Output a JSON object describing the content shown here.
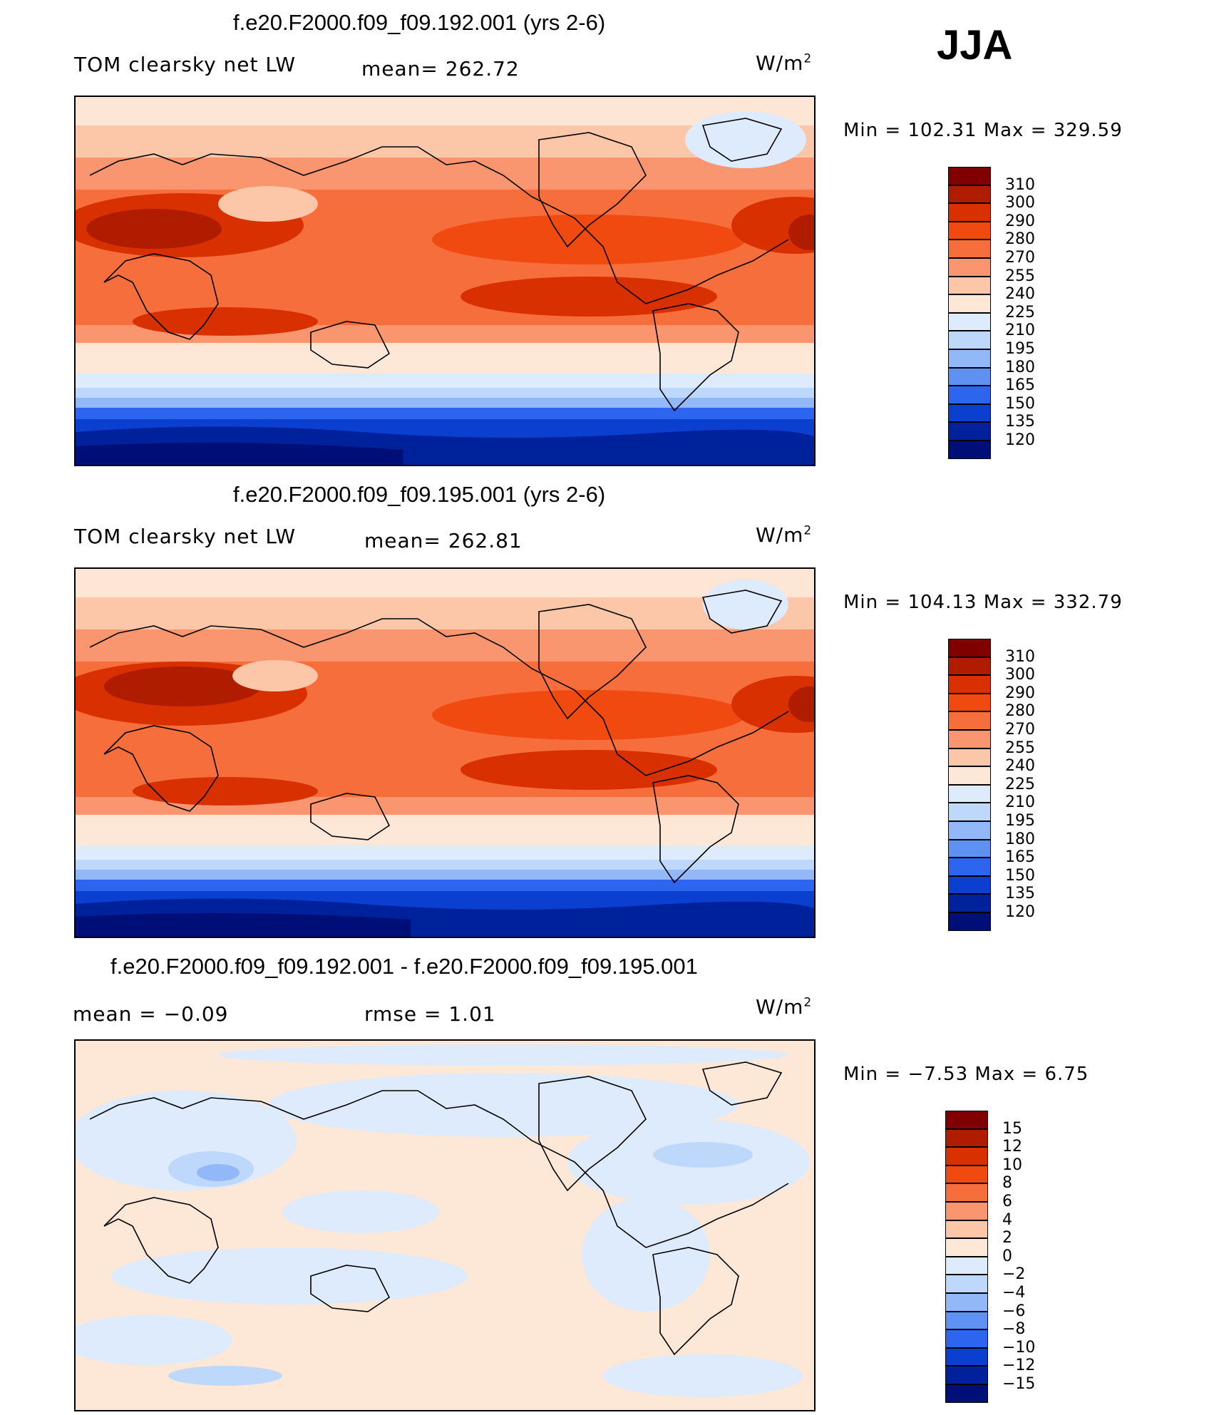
{
  "season": "JJA",
  "units_sym": "W/m",
  "units_sup": "2",
  "panels": [
    {
      "title": "f.e20.F2000.f09_f09.192.001 (yrs 2-6)",
      "left_label": "TOM clearsky net LW",
      "mid_label": "mean= 262.72",
      "minmax": "Min  =  102.31  Max  =  329.59"
    },
    {
      "title": "f.e20.F2000.f09_f09.195.001 (yrs 2-6)",
      "left_label": "TOM clearsky net LW",
      "mid_label": "mean= 262.81",
      "minmax": "Min  =  104.13  Max  =  332.79"
    },
    {
      "title": "f.e20.F2000.f09_f09.192.001 - f.e20.F2000.f09_f09.195.001",
      "left_label": "mean  =    −0.09",
      "mid_label": "rmse  =     1.01",
      "minmax": "Min  =    −7.53  Max  =     6.75"
    }
  ],
  "colorbars": {
    "absolute": {
      "ticks": [
        "310",
        "300",
        "290",
        "280",
        "270",
        "255",
        "240",
        "225",
        "210",
        "195",
        "180",
        "165",
        "150",
        "135",
        "120"
      ],
      "colors": [
        "#800000",
        "#b01c00",
        "#d83000",
        "#f04a10",
        "#f66e3c",
        "#f99670",
        "#fcc6a8",
        "#fde8d8",
        "#ddebfc",
        "#bed8fb",
        "#93b8f8",
        "#5f91f3",
        "#2c66ee",
        "#0a3fd0",
        "#00219c",
        "#000f78"
      ]
    },
    "difference": {
      "ticks": [
        "15",
        "12",
        "10",
        "8",
        "6",
        "4",
        "2",
        "0",
        "−2",
        "−4",
        "−6",
        "−8",
        "−10",
        "−12",
        "−15"
      ],
      "colors": [
        "#800000",
        "#b01c00",
        "#d83000",
        "#f04a10",
        "#f66e3c",
        "#f99670",
        "#fcc6a8",
        "#fde8d8",
        "#ddebfc",
        "#bed8fb",
        "#93b8f8",
        "#5f91f3",
        "#2c66ee",
        "#0a3fd0",
        "#00219c",
        "#000f78"
      ]
    }
  }
}
